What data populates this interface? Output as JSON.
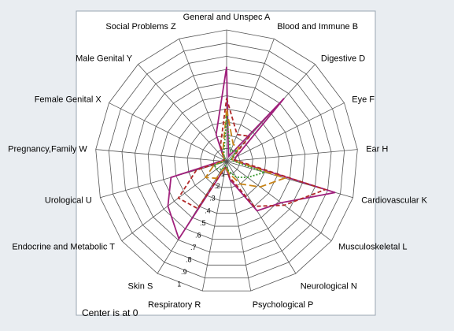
{
  "chart_data": {
    "type": "radar",
    "axes": [
      "General and Unspec A",
      "Blood and Immune B",
      "Digestive D",
      "Eye F",
      "Ear H",
      "Cardiovascular K",
      "Musculoskeletal L",
      "Neurological N",
      "Psychological P",
      "Respiratory R",
      "Skin S",
      "Endocrine and Metabolic T",
      "Urological U",
      "Pregnancy,Family W",
      "Female Genital X",
      "Male Genital Y",
      "Social Problems Z"
    ],
    "rlim": [
      0,
      1
    ],
    "ticks": [
      ".1",
      ".2",
      ".3",
      ".4",
      ".5",
      ".6",
      ".7",
      ".8",
      ".9",
      "1"
    ],
    "grid": true,
    "note": "Center is at 0",
    "series": [
      {
        "color": "#a0207c",
        "dash": "solid",
        "values": [
          0.72,
          0.04,
          0.65,
          0.08,
          0.06,
          0.86,
          0.52,
          0.44,
          0.14,
          0.04,
          0.69,
          0.56,
          0.44,
          0.04,
          0.02,
          0.03,
          0.22
        ]
      },
      {
        "color": "#b02828",
        "dash": "dashed",
        "values": [
          0.48,
          0.22,
          0.26,
          0.04,
          0.08,
          0.78,
          0.55,
          0.4,
          0.12,
          0.04,
          0.42,
          0.46,
          0.24,
          0.03,
          0.02,
          0.03,
          0.13
        ]
      },
      {
        "color": "#c88418",
        "dash": "longdash",
        "values": [
          0.4,
          0.14,
          0.14,
          0.04,
          0.06,
          0.46,
          0.32,
          0.2,
          0.09,
          0.04,
          0.15,
          0.2,
          0.1,
          0.03,
          0.02,
          0.03,
          0.08
        ]
      },
      {
        "color": "#3a9a30",
        "dash": "dotted",
        "values": [
          0.35,
          0.08,
          0.12,
          0.04,
          0.05,
          0.3,
          0.2,
          0.14,
          0.07,
          0.03,
          0.07,
          0.09,
          0.1,
          0.02,
          0.02,
          0.02,
          0.06
        ]
      }
    ]
  }
}
